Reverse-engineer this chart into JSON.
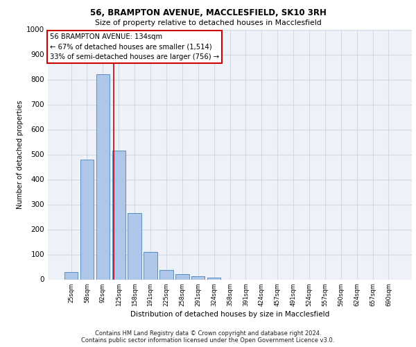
{
  "title1": "56, BRAMPTON AVENUE, MACCLESFIELD, SK10 3RH",
  "title2": "Size of property relative to detached houses in Macclesfield",
  "xlabel": "Distribution of detached houses by size in Macclesfield",
  "ylabel": "Number of detached properties",
  "bar_labels": [
    "25sqm",
    "58sqm",
    "92sqm",
    "125sqm",
    "158sqm",
    "191sqm",
    "225sqm",
    "258sqm",
    "291sqm",
    "324sqm",
    "358sqm",
    "391sqm",
    "424sqm",
    "457sqm",
    "491sqm",
    "524sqm",
    "557sqm",
    "590sqm",
    "624sqm",
    "657sqm",
    "690sqm"
  ],
  "bar_values": [
    28,
    480,
    820,
    515,
    265,
    110,
    38,
    20,
    12,
    7,
    0,
    0,
    0,
    0,
    0,
    0,
    0,
    0,
    0,
    0,
    0
  ],
  "bar_color": "#aec6e8",
  "bar_edge_color": "#5a8fc0",
  "vline_x": 2.7,
  "vline_color": "#cc0000",
  "annotation_text": "56 BRAMPTON AVENUE: 134sqm\n← 67% of detached houses are smaller (1,514)\n33% of semi-detached houses are larger (756) →",
  "annotation_box_color": "#ffffff",
  "annotation_box_edge": "#cc0000",
  "grid_color": "#d0d8e8",
  "background_color": "#eef2f8",
  "ylim": [
    0,
    1000
  ],
  "yticks": [
    0,
    100,
    200,
    300,
    400,
    500,
    600,
    700,
    800,
    900,
    1000
  ],
  "footer1": "Contains HM Land Registry data © Crown copyright and database right 2024.",
  "footer2": "Contains public sector information licensed under the Open Government Licence v3.0."
}
